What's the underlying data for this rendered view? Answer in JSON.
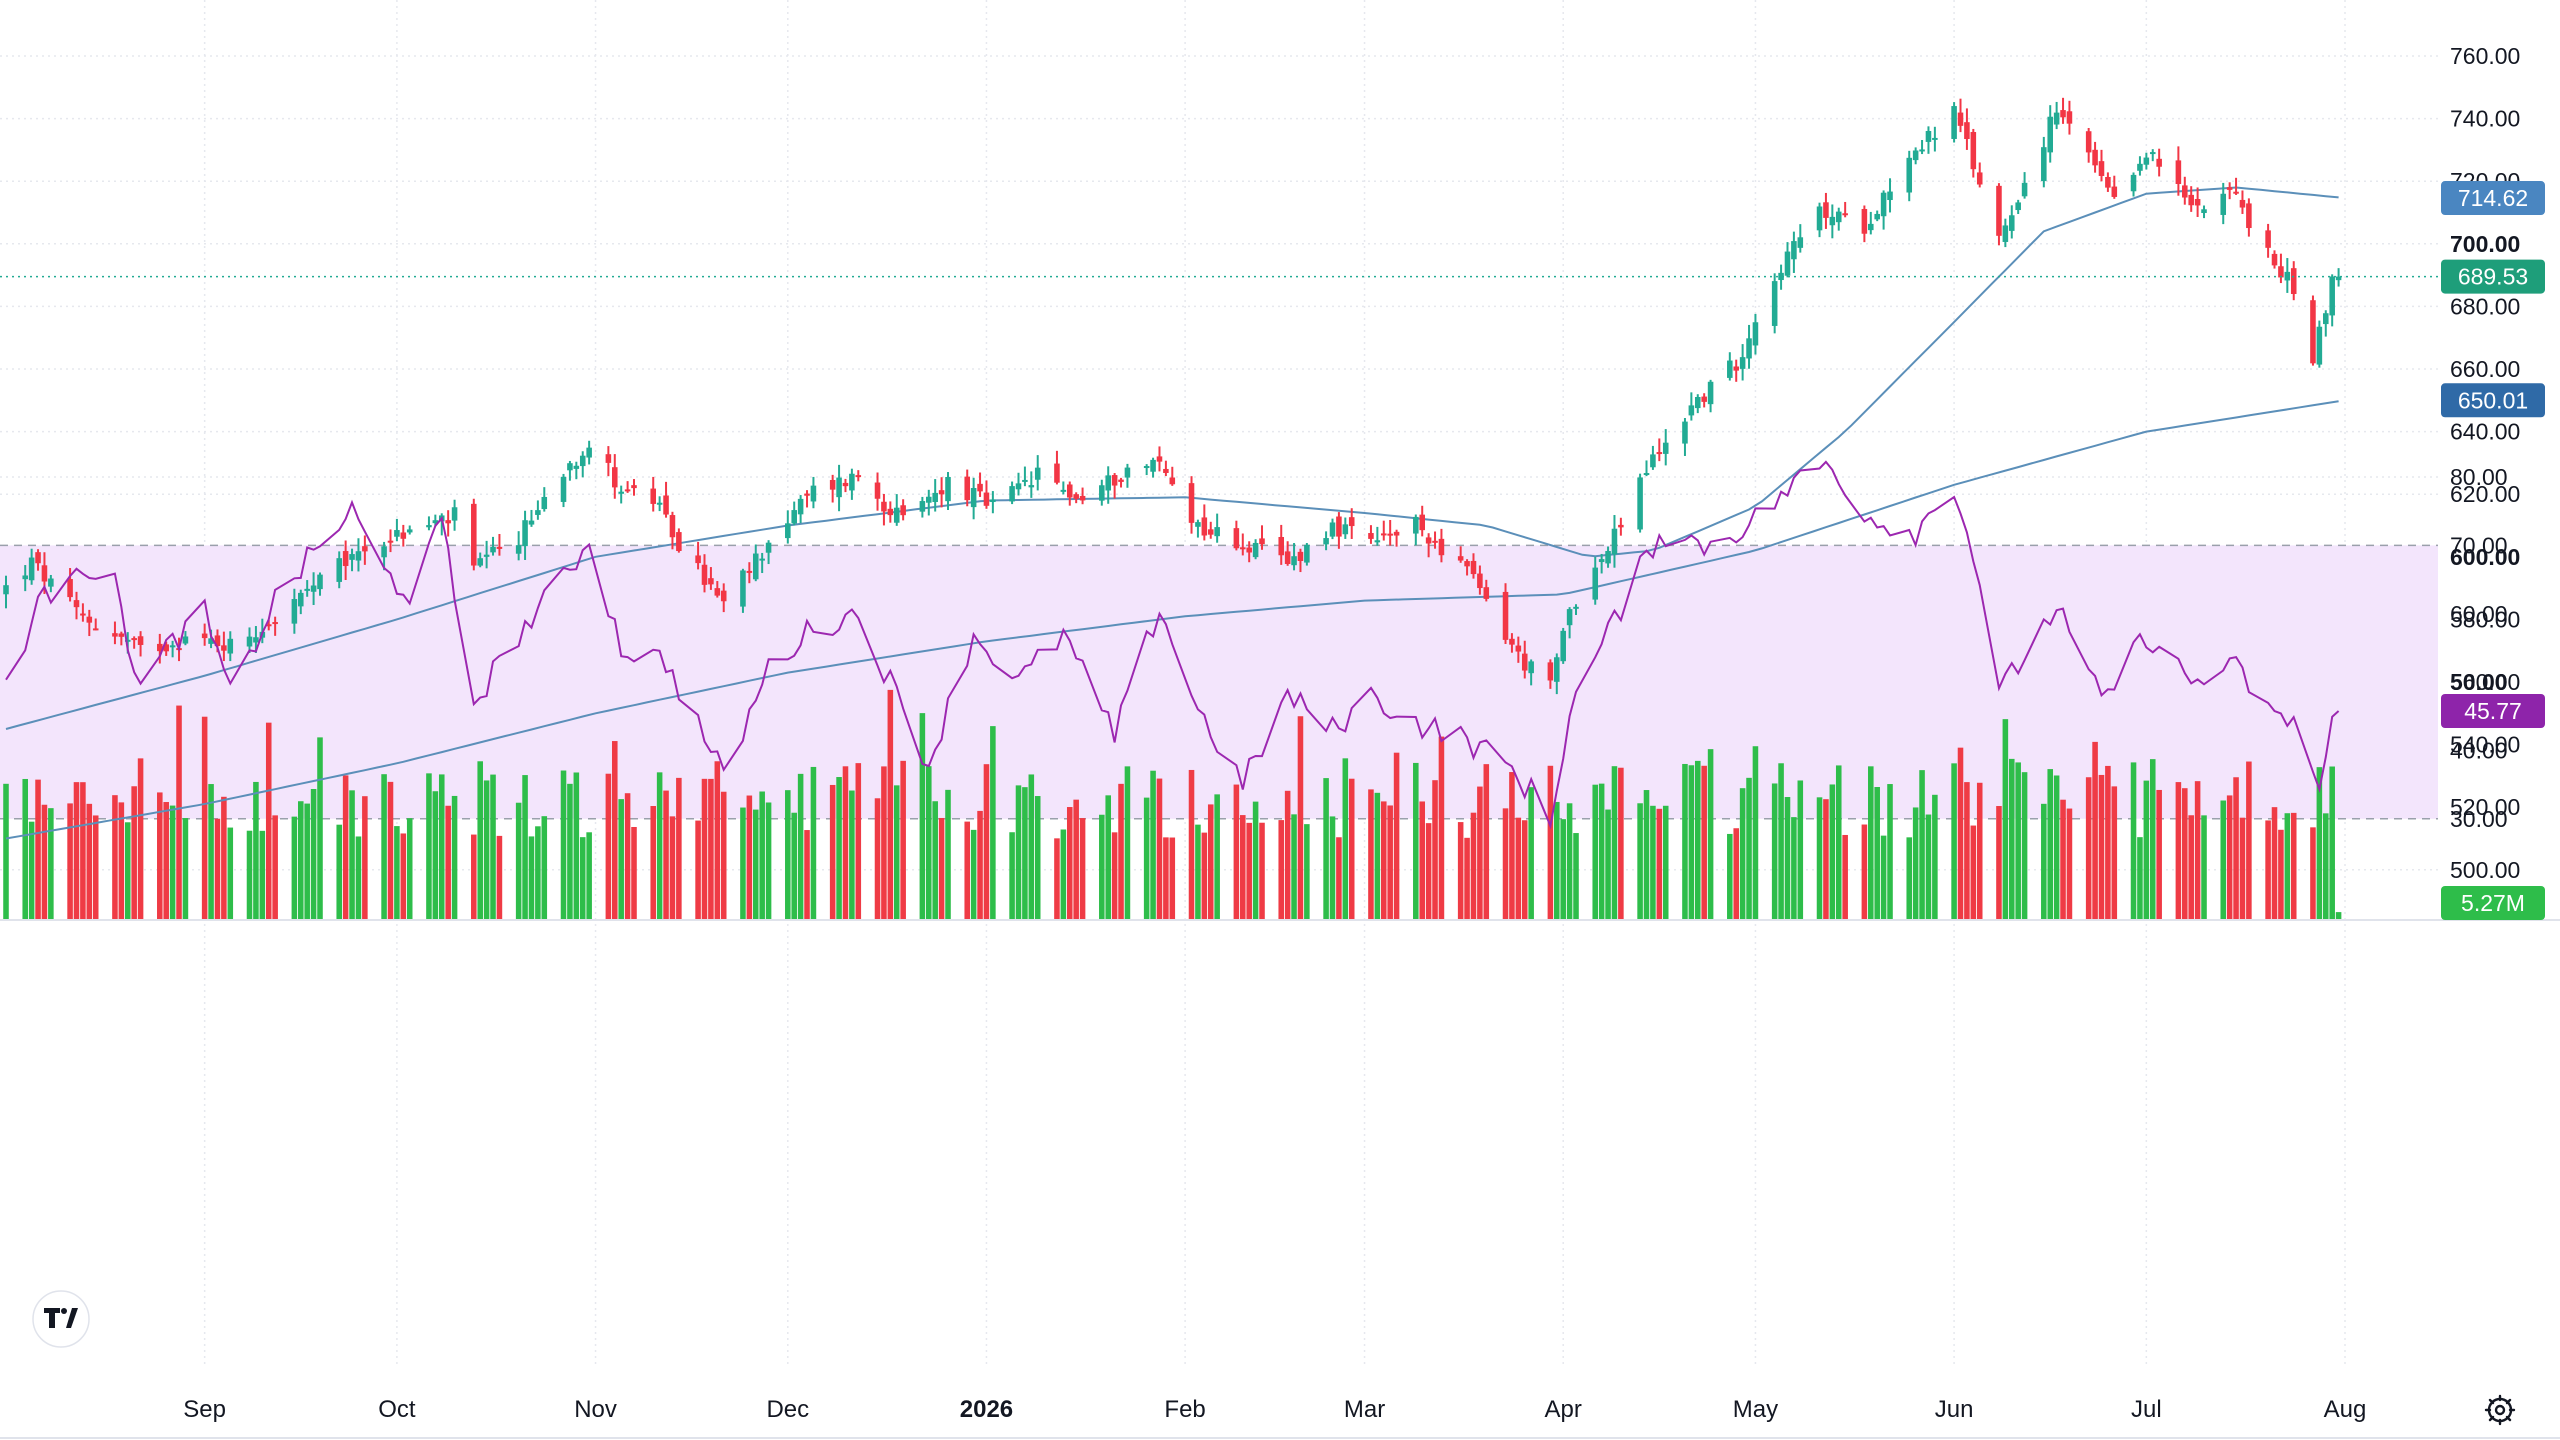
{
  "colors": {
    "up": "#22ab94",
    "down": "#f23645",
    "vol_up": "#2ebd4a",
    "vol_down": "#ef3b45",
    "ma_short": "#5b8fb9",
    "ma_long": "#5b8fb9",
    "rsi": "#9c27b0",
    "rsi_band": "#f3e5fc",
    "last_price_line": "#22ab94",
    "tag_ma_short": "#4a86c1",
    "tag_ma_long": "#2f6aa7",
    "tag_price": "#1e9e7a",
    "tag_volume": "#2ebd4a",
    "tag_rsi": "#8e24aa"
  },
  "chart_data": [
    {
      "type": "candlestick",
      "panel": "price",
      "x_tick_labels": [
        "Sep",
        "Oct",
        "Nov",
        "Dec",
        "2026",
        "Feb",
        "Mar",
        "Apr",
        "May",
        "Jun",
        "Jul",
        "Aug"
      ],
      "x_range": [
        "2025-08-01",
        "2026-08-01"
      ],
      "y_tick_labels": [
        "500.00",
        "520.00",
        "540.00",
        "560.00",
        "580.00",
        "600.00",
        "620.00",
        "640.00",
        "660.00",
        "680.00",
        "700.00",
        "720.00",
        "740.00",
        "760.00"
      ],
      "ylim": [
        485,
        768
      ],
      "grid": true,
      "last_price": "689.53",
      "ma_short_value": "714.62",
      "ma_long_value": "650.01",
      "close_anchors": [
        [
          "2025-08-01",
          590
        ],
        [
          "2025-08-05",
          598
        ],
        [
          "2025-08-12",
          582
        ],
        [
          "2025-08-18",
          575
        ],
        [
          "2025-08-22",
          570
        ],
        [
          "2025-08-29",
          574
        ],
        [
          "2025-09-05",
          572
        ],
        [
          "2025-09-12",
          580
        ],
        [
          "2025-09-19",
          592
        ],
        [
          "2025-09-26",
          603
        ],
        [
          "2025-10-03",
          608
        ],
        [
          "2025-10-10",
          613
        ],
        [
          "2025-10-13",
          596
        ],
        [
          "2025-10-20",
          606
        ],
        [
          "2025-10-27",
          628
        ],
        [
          "2025-10-31",
          636
        ],
        [
          "2025-11-05",
          622
        ],
        [
          "2025-11-10",
          618
        ],
        [
          "2025-11-14",
          604
        ],
        [
          "2025-11-19",
          590
        ],
        [
          "2025-11-21",
          584
        ],
        [
          "2025-11-28",
          605
        ],
        [
          "2025-12-05",
          621
        ],
        [
          "2025-12-12",
          626
        ],
        [
          "2025-12-19",
          611
        ],
        [
          "2025-12-26",
          624
        ],
        [
          "2026-01-02",
          616
        ],
        [
          "2026-01-09",
          626
        ],
        [
          "2026-01-16",
          618
        ],
        [
          "2026-01-23",
          628
        ],
        [
          "2026-01-28",
          630
        ],
        [
          "2026-02-03",
          610
        ],
        [
          "2026-02-10",
          604
        ],
        [
          "2026-02-17",
          598
        ],
        [
          "2026-02-24",
          610
        ],
        [
          "2026-03-02",
          604
        ],
        [
          "2026-03-09",
          610
        ],
        [
          "2026-03-16",
          598
        ],
        [
          "2026-03-20",
          586
        ],
        [
          "2026-03-25",
          568
        ],
        [
          "2026-03-30",
          558
        ],
        [
          "2026-04-02",
          584
        ],
        [
          "2026-04-08",
          602
        ],
        [
          "2026-04-14",
          628
        ],
        [
          "2026-04-21",
          648
        ],
        [
          "2026-04-28",
          662
        ],
        [
          "2026-05-04",
          690
        ],
        [
          "2026-05-11",
          710
        ],
        [
          "2026-05-18",
          706
        ],
        [
          "2026-05-25",
          728
        ],
        [
          "2026-06-01",
          742
        ],
        [
          "2026-06-04",
          725
        ],
        [
          "2026-06-08",
          702
        ],
        [
          "2026-06-12",
          720
        ],
        [
          "2026-06-17",
          742
        ],
        [
          "2026-06-22",
          728
        ],
        [
          "2026-06-26",
          712
        ],
        [
          "2026-07-01",
          730
        ],
        [
          "2026-07-08",
          712
        ],
        [
          "2026-07-14",
          718
        ],
        [
          "2026-07-20",
          696
        ],
        [
          "2026-07-24",
          686
        ],
        [
          "2026-07-27",
          664
        ],
        [
          "2026-07-30",
          688
        ],
        [
          "2026-08-01",
          689.5
        ]
      ],
      "ma_short_anchors": [
        [
          "2025-08-01",
          545
        ],
        [
          "2025-09-01",
          562
        ],
        [
          "2025-10-01",
          580
        ],
        [
          "2025-11-01",
          600
        ],
        [
          "2025-12-01",
          610
        ],
        [
          "2026-01-01",
          618
        ],
        [
          "2026-02-01",
          619
        ],
        [
          "2026-03-01",
          614
        ],
        [
          "2026-03-20",
          610
        ],
        [
          "2026-04-05",
          600
        ],
        [
          "2026-04-15",
          602
        ],
        [
          "2026-05-01",
          616
        ],
        [
          "2026-05-15",
          640
        ],
        [
          "2026-06-01",
          675
        ],
        [
          "2026-06-15",
          704
        ],
        [
          "2026-07-01",
          716
        ],
        [
          "2026-07-15",
          718
        ],
        [
          "2026-08-01",
          714.62
        ]
      ],
      "ma_long_anchors": [
        [
          "2025-08-01",
          510
        ],
        [
          "2025-09-01",
          521
        ],
        [
          "2025-10-01",
          534
        ],
        [
          "2025-11-01",
          550
        ],
        [
          "2025-12-01",
          563
        ],
        [
          "2026-01-01",
          573
        ],
        [
          "2026-02-01",
          581
        ],
        [
          "2026-03-01",
          586
        ],
        [
          "2026-04-01",
          588
        ],
        [
          "2026-05-01",
          602
        ],
        [
          "2026-06-01",
          623
        ],
        [
          "2026-07-01",
          640
        ],
        [
          "2026-08-01",
          650.01
        ]
      ]
    },
    {
      "type": "bar",
      "panel": "volume",
      "last_volume": "5.27M",
      "relative_max": 1.0
    },
    {
      "type": "line",
      "panel": "rsi",
      "y_tick_labels": [
        "30.00",
        "40.00",
        "50.00",
        "60.00",
        "70.00",
        "80.00"
      ],
      "ylim": [
        27,
        88
      ],
      "band": [
        30,
        70
      ],
      "last_value": "45.77",
      "anchors": [
        [
          "2025-08-01",
          50
        ],
        [
          "2025-08-06",
          61
        ],
        [
          "2025-08-12",
          68
        ],
        [
          "2025-08-18",
          64
        ],
        [
          "2025-08-22",
          49
        ],
        [
          "2025-08-27",
          56
        ],
        [
          "2025-09-01",
          60
        ],
        [
          "2025-09-05",
          48
        ],
        [
          "2025-09-12",
          62
        ],
        [
          "2025-09-19",
          70
        ],
        [
          "2025-09-24",
          75
        ],
        [
          "2025-09-29",
          66
        ],
        [
          "2025-10-03",
          63
        ],
        [
          "2025-10-08",
          73
        ],
        [
          "2025-10-13",
          47
        ],
        [
          "2025-10-20",
          57
        ],
        [
          "2025-10-27",
          65
        ],
        [
          "2025-10-31",
          71
        ],
        [
          "2025-11-05",
          55
        ],
        [
          "2025-11-12",
          53
        ],
        [
          "2025-11-19",
          40
        ],
        [
          "2025-11-21",
          36
        ],
        [
          "2025-11-28",
          52
        ],
        [
          "2025-12-05",
          58
        ],
        [
          "2025-12-12",
          60
        ],
        [
          "2025-12-17",
          50
        ],
        [
          "2025-12-23",
          38
        ],
        [
          "2025-12-30",
          57
        ],
        [
          "2026-01-06",
          50
        ],
        [
          "2026-01-13",
          57
        ],
        [
          "2026-01-21",
          42
        ],
        [
          "2026-01-28",
          61
        ],
        [
          "2026-02-03",
          46
        ],
        [
          "2026-02-10",
          35
        ],
        [
          "2026-02-17",
          48
        ],
        [
          "2026-02-24",
          43
        ],
        [
          "2026-03-02",
          48
        ],
        [
          "2026-03-09",
          44
        ],
        [
          "2026-03-16",
          42
        ],
        [
          "2026-03-23",
          38
        ],
        [
          "2026-03-27",
          34
        ],
        [
          "2026-03-30",
          29
        ],
        [
          "2026-04-02",
          46
        ],
        [
          "2026-04-09",
          59
        ],
        [
          "2026-04-16",
          72
        ],
        [
          "2026-04-23",
          70
        ],
        [
          "2026-04-30",
          73
        ],
        [
          "2026-05-07",
          79
        ],
        [
          "2026-05-12",
          82
        ],
        [
          "2026-05-19",
          74
        ],
        [
          "2026-05-26",
          72
        ],
        [
          "2026-06-01",
          79
        ],
        [
          "2026-06-05",
          65
        ],
        [
          "2026-06-08",
          48
        ],
        [
          "2026-06-12",
          54
        ],
        [
          "2026-06-17",
          61
        ],
        [
          "2026-06-24",
          47
        ],
        [
          "2026-07-01",
          57
        ],
        [
          "2026-07-08",
          50
        ],
        [
          "2026-07-15",
          52
        ],
        [
          "2026-07-22",
          44
        ],
        [
          "2026-07-24",
          45
        ],
        [
          "2026-07-28",
          34
        ],
        [
          "2026-07-30",
          44
        ],
        [
          "2026-08-01",
          45.77
        ]
      ]
    }
  ]
}
